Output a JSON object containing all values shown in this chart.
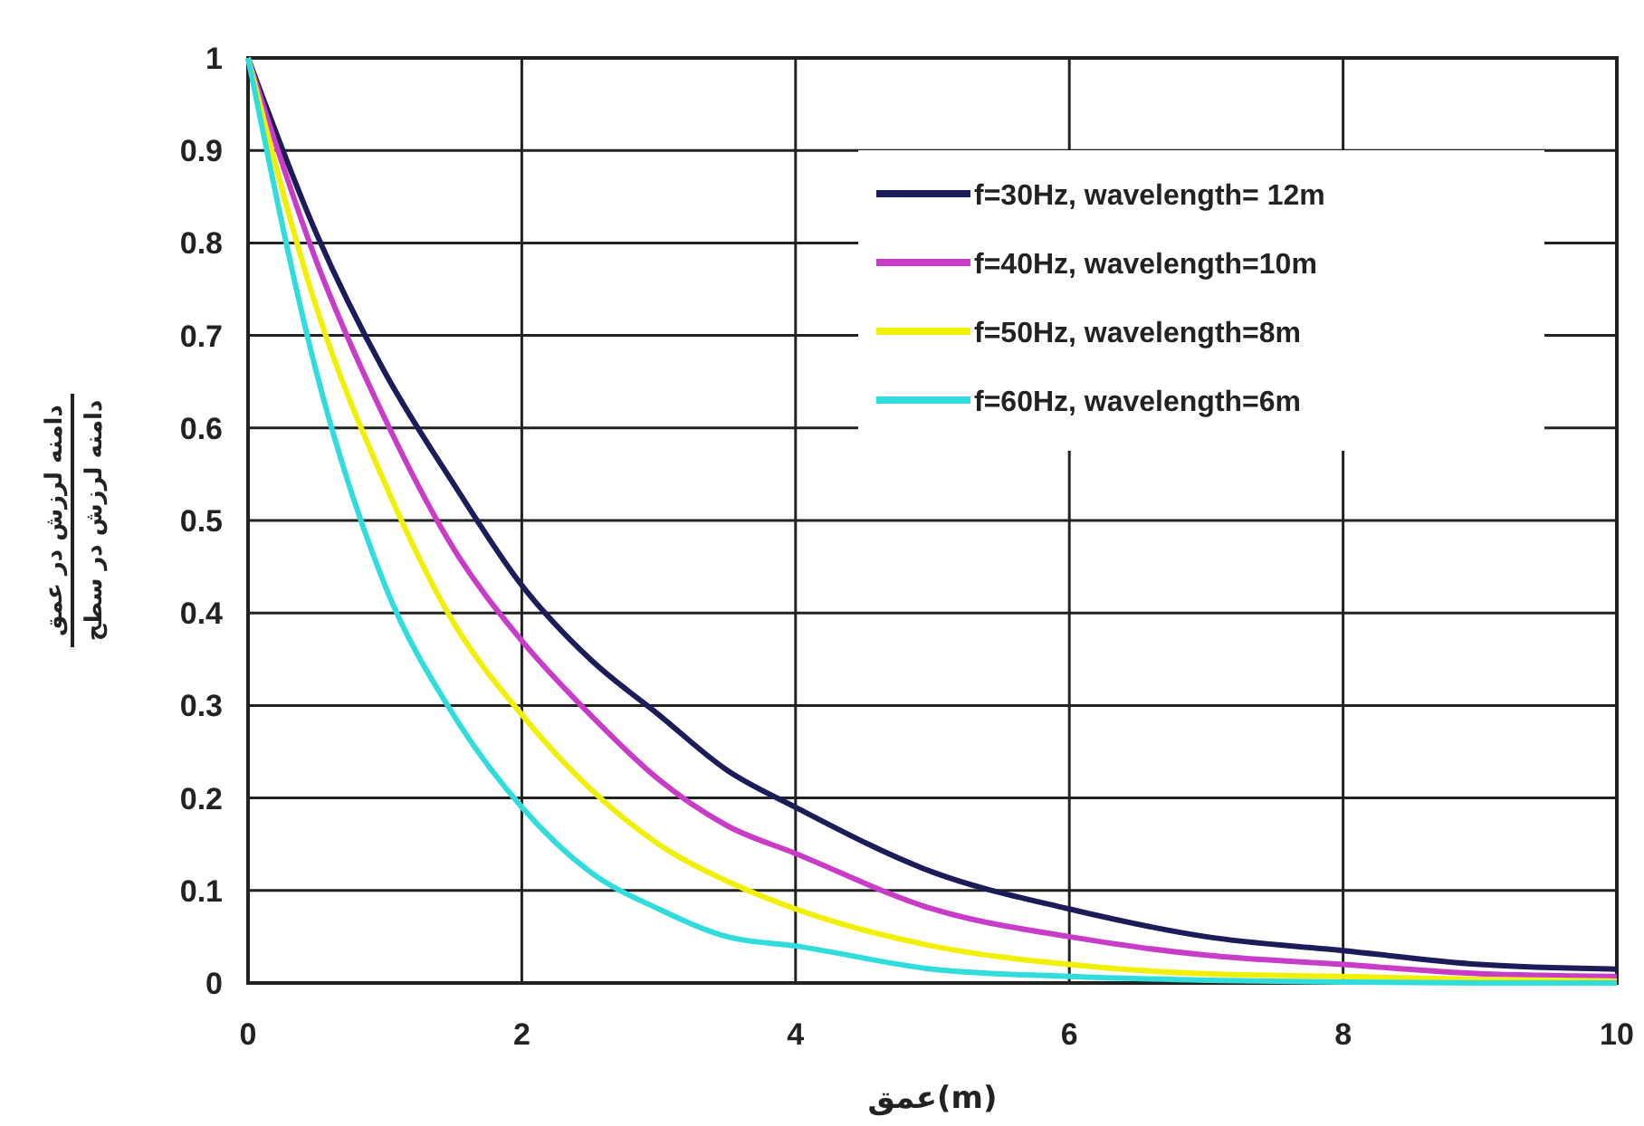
{
  "chart_data": {
    "type": "line",
    "xlabel": "عمق(m)",
    "ylabel": "دامنه لرزش در عمق\nدامنه لرزش در سطح",
    "x": [
      0,
      0.5,
      1,
      1.5,
      2,
      2.5,
      3,
      3.5,
      4,
      5,
      6,
      7,
      8,
      9,
      10
    ],
    "series": [
      {
        "name": "f=30Hz, wavelength= 12m",
        "color": "#1c1c5a",
        "values": [
          1,
          0.81,
          0.66,
          0.54,
          0.43,
          0.35,
          0.29,
          0.23,
          0.19,
          0.12,
          0.08,
          0.05,
          0.035,
          0.02,
          0.015
        ]
      },
      {
        "name": "f=40Hz, wavelength=10m",
        "color": "#c83cc8",
        "values": [
          1,
          0.78,
          0.61,
          0.47,
          0.37,
          0.29,
          0.22,
          0.17,
          0.14,
          0.08,
          0.05,
          0.03,
          0.02,
          0.01,
          0.007
        ]
      },
      {
        "name": "f=50Hz, wavelength=8m",
        "color": "#f0f000",
        "values": [
          1,
          0.73,
          0.54,
          0.39,
          0.29,
          0.21,
          0.15,
          0.11,
          0.08,
          0.04,
          0.02,
          0.01,
          0.007,
          0.004,
          0.002
        ]
      },
      {
        "name": "f=60Hz, wavelength=6m",
        "color": "#30dcdc",
        "values": [
          1,
          0.66,
          0.43,
          0.29,
          0.19,
          0.12,
          0.08,
          0.05,
          0.04,
          0.015,
          0.007,
          0.003,
          0.001,
          0,
          0
        ]
      }
    ],
    "xlim": [
      0,
      10
    ],
    "xticks": [
      0,
      2,
      4,
      6,
      8,
      10
    ],
    "ylim": [
      0,
      1
    ],
    "yticks": [
      0,
      0.1,
      0.2,
      0.3,
      0.4,
      0.5,
      0.6,
      0.7,
      0.8,
      0.9,
      1
    ],
    "grid": true,
    "legend": "top right",
    "marker": "none",
    "line_style": "solid"
  }
}
